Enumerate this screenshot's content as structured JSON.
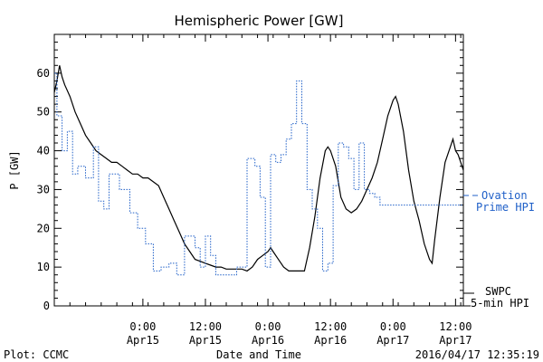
{
  "chart_data": {
    "type": "line",
    "title": "Hemispheric Power [GW]",
    "ylabel": "P [GW]",
    "xlabel": "Date and Time",
    "ylim": [
      0,
      70
    ],
    "yticks": [
      0,
      10,
      20,
      30,
      40,
      50,
      60
    ],
    "xlim": [
      "2016-04-14 07:00",
      "2016-04-17 13:30"
    ],
    "xticks": [
      {
        "t": "2016-04-15 00:00",
        "time": "0:00",
        "date": "Apr15"
      },
      {
        "t": "2016-04-15 12:00",
        "time": "12:00",
        "date": "Apr15"
      },
      {
        "t": "2016-04-16 00:00",
        "time": "0:00",
        "date": "Apr16"
      },
      {
        "t": "2016-04-16 12:00",
        "time": "12:00",
        "date": "Apr16"
      },
      {
        "t": "2016-04-17 00:00",
        "time": "0:00",
        "date": "Apr17"
      },
      {
        "t": "2016-04-17 12:00",
        "time": "12:00",
        "date": "Apr17"
      }
    ],
    "series": [
      {
        "name": "SWPC 5-min HPI",
        "legend_lines": [
          "SWPC",
          "5-min HPI"
        ],
        "color": "#000000",
        "style": "solid",
        "points": [
          [
            "2016-04-14 07:00",
            55
          ],
          [
            "2016-04-14 07:30",
            58
          ],
          [
            "2016-04-14 08:00",
            62
          ],
          [
            "2016-04-14 08:30",
            59
          ],
          [
            "2016-04-14 09:00",
            57
          ],
          [
            "2016-04-14 10:00",
            54
          ],
          [
            "2016-04-14 11:00",
            50
          ],
          [
            "2016-04-14 12:00",
            47
          ],
          [
            "2016-04-14 13:00",
            44
          ],
          [
            "2016-04-14 14:00",
            42
          ],
          [
            "2016-04-14 15:00",
            40
          ],
          [
            "2016-04-14 16:00",
            39
          ],
          [
            "2016-04-14 17:00",
            38
          ],
          [
            "2016-04-14 18:00",
            37
          ],
          [
            "2016-04-14 19:00",
            37
          ],
          [
            "2016-04-14 20:00",
            36
          ],
          [
            "2016-04-14 21:00",
            35
          ],
          [
            "2016-04-14 22:00",
            34
          ],
          [
            "2016-04-14 23:00",
            34
          ],
          [
            "2016-04-15 00:00",
            33
          ],
          [
            "2016-04-15 01:00",
            33
          ],
          [
            "2016-04-15 02:00",
            32
          ],
          [
            "2016-04-15 03:00",
            31
          ],
          [
            "2016-04-15 04:00",
            28
          ],
          [
            "2016-04-15 05:00",
            25
          ],
          [
            "2016-04-15 06:00",
            22
          ],
          [
            "2016-04-15 07:00",
            19
          ],
          [
            "2016-04-15 08:00",
            16
          ],
          [
            "2016-04-15 09:00",
            14
          ],
          [
            "2016-04-15 10:00",
            12
          ],
          [
            "2016-04-15 11:00",
            11.5
          ],
          [
            "2016-04-15 12:00",
            11
          ],
          [
            "2016-04-15 13:00",
            10.5
          ],
          [
            "2016-04-15 14:00",
            10
          ],
          [
            "2016-04-15 15:00",
            10
          ],
          [
            "2016-04-15 16:00",
            9.5
          ],
          [
            "2016-04-15 17:00",
            9.5
          ],
          [
            "2016-04-15 18:00",
            9.5
          ],
          [
            "2016-04-15 19:00",
            9.5
          ],
          [
            "2016-04-15 20:00",
            9
          ],
          [
            "2016-04-15 21:00",
            10
          ],
          [
            "2016-04-15 22:00",
            12
          ],
          [
            "2016-04-15 23:00",
            13
          ],
          [
            "2016-04-16 00:00",
            14
          ],
          [
            "2016-04-16 00:30",
            15
          ],
          [
            "2016-04-16 01:00",
            14
          ],
          [
            "2016-04-16 02:00",
            12
          ],
          [
            "2016-04-16 03:00",
            10
          ],
          [
            "2016-04-16 04:00",
            9
          ],
          [
            "2016-04-16 05:00",
            9
          ],
          [
            "2016-04-16 06:00",
            9
          ],
          [
            "2016-04-16 07:00",
            9
          ],
          [
            "2016-04-16 08:00",
            15
          ],
          [
            "2016-04-16 09:00",
            23
          ],
          [
            "2016-04-16 10:00",
            33
          ],
          [
            "2016-04-16 11:00",
            40
          ],
          [
            "2016-04-16 11:30",
            41
          ],
          [
            "2016-04-16 12:00",
            40
          ],
          [
            "2016-04-16 13:00",
            36
          ],
          [
            "2016-04-16 14:00",
            28
          ],
          [
            "2016-04-16 15:00",
            25
          ],
          [
            "2016-04-16 16:00",
            24
          ],
          [
            "2016-04-16 17:00",
            25
          ],
          [
            "2016-04-16 18:00",
            27
          ],
          [
            "2016-04-16 19:00",
            30
          ],
          [
            "2016-04-16 20:00",
            33
          ],
          [
            "2016-04-16 21:00",
            37
          ],
          [
            "2016-04-16 22:00",
            43
          ],
          [
            "2016-04-16 23:00",
            49
          ],
          [
            "2016-04-17 00:00",
            53
          ],
          [
            "2016-04-17 00:30",
            54
          ],
          [
            "2016-04-17 01:00",
            52
          ],
          [
            "2016-04-17 02:00",
            45
          ],
          [
            "2016-04-17 03:00",
            35
          ],
          [
            "2016-04-17 04:00",
            27
          ],
          [
            "2016-04-17 05:00",
            22
          ],
          [
            "2016-04-17 06:00",
            16
          ],
          [
            "2016-04-17 07:00",
            12
          ],
          [
            "2016-04-17 07:30",
            11
          ],
          [
            "2016-04-17 08:00",
            17
          ],
          [
            "2016-04-17 09:00",
            28
          ],
          [
            "2016-04-17 10:00",
            37
          ],
          [
            "2016-04-17 11:00",
            41
          ],
          [
            "2016-04-17 11:30",
            43
          ],
          [
            "2016-04-17 12:00",
            40
          ],
          [
            "2016-04-17 12:30",
            39
          ],
          [
            "2016-04-17 13:00",
            37
          ],
          [
            "2016-04-17 13:30",
            35
          ]
        ]
      },
      {
        "name": "Ovation Prime HPI",
        "legend_lines": [
          "Ovation",
          "Prime HPI"
        ],
        "color": "#2060c8",
        "style": "dotted-step",
        "points": [
          [
            "2016-04-14 07:00",
            60
          ],
          [
            "2016-04-14 07:30",
            49
          ],
          [
            "2016-04-14 08:30",
            40
          ],
          [
            "2016-04-14 09:30",
            45
          ],
          [
            "2016-04-14 10:30",
            34
          ],
          [
            "2016-04-14 11:30",
            36
          ],
          [
            "2016-04-14 13:00",
            33
          ],
          [
            "2016-04-14 14:30",
            41
          ],
          [
            "2016-04-14 15:30",
            27
          ],
          [
            "2016-04-14 16:30",
            25
          ],
          [
            "2016-04-14 17:30",
            34
          ],
          [
            "2016-04-14 19:30",
            30
          ],
          [
            "2016-04-14 21:30",
            24
          ],
          [
            "2016-04-14 23:00",
            20
          ],
          [
            "2016-04-15 00:30",
            16
          ],
          [
            "2016-04-15 02:00",
            9
          ],
          [
            "2016-04-15 03:30",
            10
          ],
          [
            "2016-04-15 05:00",
            11
          ],
          [
            "2016-04-15 06:30",
            8
          ],
          [
            "2016-04-15 08:00",
            18
          ],
          [
            "2016-04-15 10:00",
            15
          ],
          [
            "2016-04-15 11:00",
            10
          ],
          [
            "2016-04-15 12:00",
            18
          ],
          [
            "2016-04-15 13:00",
            13
          ],
          [
            "2016-04-15 14:00",
            8
          ],
          [
            "2016-04-15 16:00",
            8
          ],
          [
            "2016-04-15 18:00",
            10
          ],
          [
            "2016-04-15 20:00",
            38
          ],
          [
            "2016-04-15 21:30",
            36
          ],
          [
            "2016-04-15 22:30",
            28
          ],
          [
            "2016-04-15 23:30",
            10
          ],
          [
            "2016-04-16 00:30",
            39
          ],
          [
            "2016-04-16 01:30",
            37
          ],
          [
            "2016-04-16 02:30",
            39
          ],
          [
            "2016-04-16 03:30",
            43
          ],
          [
            "2016-04-16 04:30",
            47
          ],
          [
            "2016-04-16 05:30",
            58
          ],
          [
            "2016-04-16 06:30",
            47
          ],
          [
            "2016-04-16 07:30",
            30
          ],
          [
            "2016-04-16 08:30",
            25
          ],
          [
            "2016-04-16 09:30",
            20
          ],
          [
            "2016-04-16 10:30",
            9
          ],
          [
            "2016-04-16 11:30",
            11
          ],
          [
            "2016-04-16 12:30",
            31
          ],
          [
            "2016-04-16 13:30",
            42
          ],
          [
            "2016-04-16 14:30",
            41
          ],
          [
            "2016-04-16 15:30",
            38
          ],
          [
            "2016-04-16 16:30",
            30
          ],
          [
            "2016-04-16 17:30",
            42
          ],
          [
            "2016-04-16 18:30",
            30
          ],
          [
            "2016-04-16 19:30",
            29
          ],
          [
            "2016-04-16 20:30",
            28
          ],
          [
            "2016-04-16 21:30",
            26
          ]
        ]
      }
    ]
  },
  "footer": {
    "left": "Plot: CCMC",
    "right": "2016/04/17 12:35:19"
  }
}
